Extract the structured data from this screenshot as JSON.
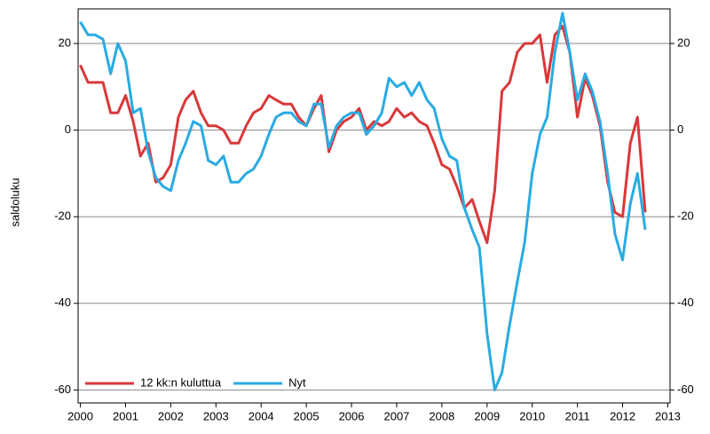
{
  "chart_data": {
    "type": "line",
    "y_label": "saldoluku",
    "xlim": [
      1999.95,
      2013.05
    ],
    "xticks": [
      2000,
      2001,
      2002,
      2003,
      2004,
      2005,
      2006,
      2007,
      2008,
      2009,
      2010,
      2011,
      2012,
      2013
    ],
    "ylim": [
      -63,
      28
    ],
    "yticks": [
      -60,
      -40,
      -20,
      0,
      20
    ],
    "y2lim": [
      -63,
      28
    ],
    "y2ticks": [
      -60,
      -40,
      -20,
      0,
      20
    ],
    "grid": true,
    "legend": "lower left",
    "x": [
      2000.0,
      2000.17,
      2000.33,
      2000.5,
      2000.67,
      2000.83,
      2001.0,
      2001.17,
      2001.33,
      2001.5,
      2001.67,
      2001.83,
      2002.0,
      2002.17,
      2002.33,
      2002.5,
      2002.67,
      2002.83,
      2003.0,
      2003.17,
      2003.33,
      2003.5,
      2003.67,
      2003.83,
      2004.0,
      2004.17,
      2004.33,
      2004.5,
      2004.67,
      2004.83,
      2005.0,
      2005.17,
      2005.33,
      2005.5,
      2005.67,
      2005.83,
      2006.0,
      2006.17,
      2006.33,
      2006.5,
      2006.67,
      2006.83,
      2007.0,
      2007.17,
      2007.33,
      2007.5,
      2007.67,
      2007.83,
      2008.0,
      2008.17,
      2008.33,
      2008.5,
      2008.67,
      2008.83,
      2009.0,
      2009.17,
      2009.33,
      2009.5,
      2009.67,
      2009.83,
      2010.0,
      2010.17,
      2010.33,
      2010.5,
      2010.67,
      2010.83,
      2011.0,
      2011.17,
      2011.33,
      2011.5,
      2011.67,
      2011.83,
      2012.0,
      2012.17,
      2012.33,
      2012.5
    ],
    "series": [
      {
        "name": "12 kk:n kuluttua",
        "color": "#d9383a",
        "values": [
          15,
          11,
          11,
          11,
          4,
          4,
          8,
          2,
          -6,
          -3,
          -12,
          -11,
          -8,
          3,
          7,
          9,
          4,
          1,
          1,
          0,
          -3,
          -3,
          1,
          4,
          5,
          8,
          7,
          6,
          6,
          3,
          1,
          5,
          8,
          -5,
          0,
          2,
          3,
          5,
          0,
          2,
          1,
          2,
          5,
          3,
          4,
          2,
          1,
          -3,
          -8,
          -9,
          -13,
          -18,
          -16,
          -21,
          -26,
          -14,
          9,
          11,
          18,
          20,
          20,
          22,
          11,
          22,
          24,
          18,
          3,
          12,
          8,
          1,
          -12,
          -19,
          -20,
          -3,
          3,
          -19
        ]
      },
      {
        "name": "Nyt",
        "color": "#29abe2",
        "values": [
          25,
          22,
          22,
          21,
          13,
          20,
          16,
          4,
          5,
          -5,
          -11,
          -13,
          -14,
          -7,
          -3,
          2,
          1,
          -7,
          -8,
          -6,
          -12,
          -12,
          -10,
          -9,
          -6,
          -1,
          3,
          4,
          4,
          2,
          1,
          6,
          6,
          -4,
          1,
          3,
          4,
          4,
          -1,
          1,
          4,
          12,
          10,
          11,
          8,
          11,
          7,
          5,
          -2,
          -6,
          -7,
          -18,
          -23,
          -27,
          -47,
          -60,
          -56,
          -45,
          -35,
          -26,
          -10,
          -1,
          3,
          18,
          27,
          18,
          7,
          13,
          9,
          2,
          -10,
          -24,
          -30,
          -17,
          -10,
          -23
        ]
      }
    ]
  }
}
